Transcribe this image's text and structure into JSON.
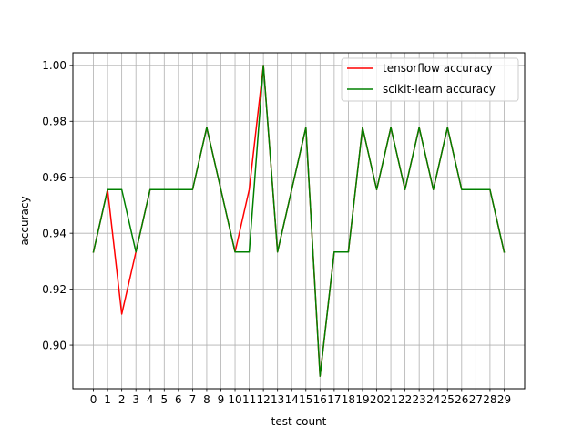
{
  "chart_data": {
    "type": "line",
    "title": "",
    "xlabel": "test count",
    "ylabel": "accuracy",
    "x": [
      0,
      1,
      2,
      3,
      4,
      5,
      6,
      7,
      8,
      9,
      10,
      11,
      12,
      13,
      14,
      15,
      16,
      17,
      18,
      19,
      20,
      21,
      22,
      23,
      24,
      25,
      26,
      27,
      28,
      29
    ],
    "xlim": [
      -1.45,
      30.45
    ],
    "ylim": [
      0.8844,
      1.0045
    ],
    "yticks": [
      0.9,
      0.92,
      0.94,
      0.96,
      0.98,
      1.0
    ],
    "ytick_labels": [
      "0.90",
      "0.92",
      "0.94",
      "0.96",
      "0.98",
      "1.00"
    ],
    "grid": true,
    "legend_position": "top-right",
    "series": [
      {
        "name": "tensorflow accuracy",
        "color": "#ff0000",
        "values": [
          0.9333,
          0.9556,
          0.9111,
          0.9333,
          0.9556,
          0.9556,
          0.9556,
          0.9556,
          0.9778,
          0.9556,
          0.9333,
          0.9556,
          1.0,
          0.9333,
          0.9556,
          0.9778,
          0.8889,
          0.9333,
          0.9333,
          0.9778,
          0.9556,
          0.9778,
          0.9556,
          0.9778,
          0.9556,
          0.9778,
          0.9556,
          0.9556,
          0.9556,
          0.9333
        ]
      },
      {
        "name": "scikit-learn accuracy",
        "color": "#008000",
        "values": [
          0.9333,
          0.9556,
          0.9556,
          0.9333,
          0.9556,
          0.9556,
          0.9556,
          0.9556,
          0.9778,
          0.9556,
          0.9333,
          0.9333,
          1.0,
          0.9333,
          0.9556,
          0.9778,
          0.8889,
          0.9333,
          0.9333,
          0.9778,
          0.9556,
          0.9778,
          0.9556,
          0.9778,
          0.9556,
          0.9778,
          0.9556,
          0.9556,
          0.9556,
          0.9333
        ]
      }
    ]
  }
}
